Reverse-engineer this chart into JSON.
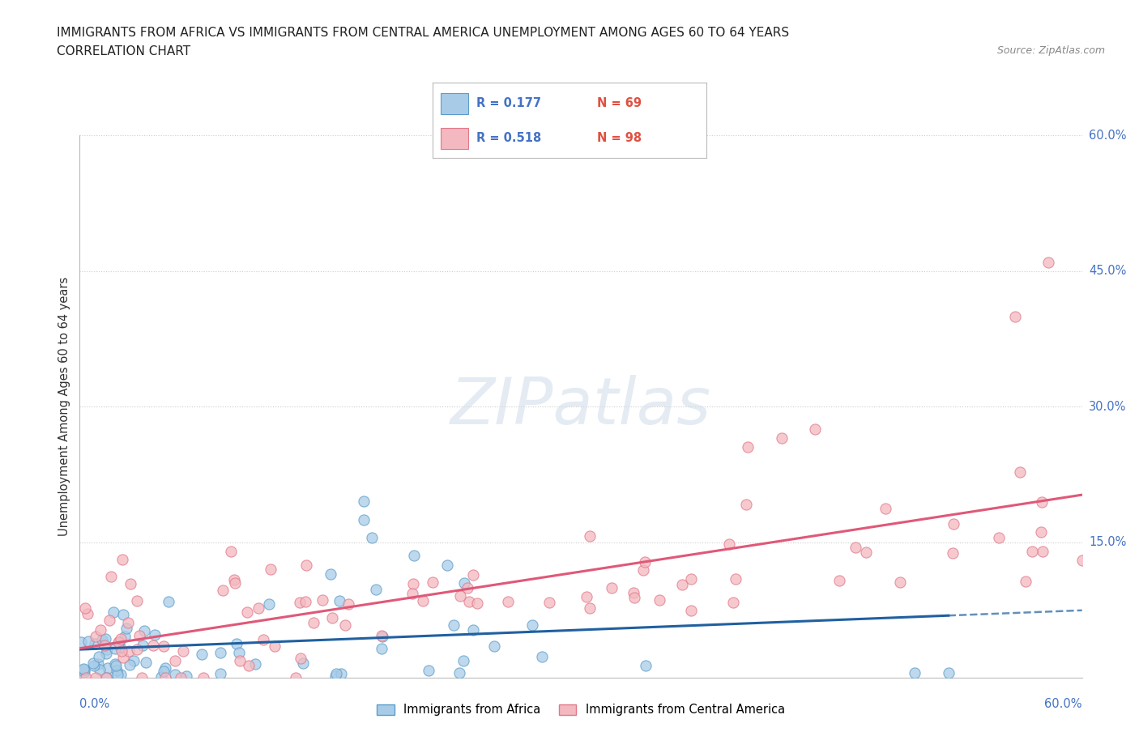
{
  "title_line1": "IMMIGRANTS FROM AFRICA VS IMMIGRANTS FROM CENTRAL AMERICA UNEMPLOYMENT AMONG AGES 60 TO 64 YEARS",
  "title_line2": "CORRELATION CHART",
  "source": "Source: ZipAtlas.com",
  "ylabel": "Unemployment Among Ages 60 to 64 years",
  "xlim": [
    0.0,
    0.6
  ],
  "ylim": [
    0.0,
    0.6
  ],
  "legend_africa_R": "0.177",
  "legend_africa_N": "69",
  "legend_central_R": "0.518",
  "legend_central_N": "98",
  "color_africa_fill": "#a8cce8",
  "color_africa_edge": "#5b9dc9",
  "color_africa_line": "#2060a0",
  "color_central_fill": "#f4b8c0",
  "color_central_edge": "#e07888",
  "color_central_line": "#e05878",
  "watermark": "ZIPatlas"
}
